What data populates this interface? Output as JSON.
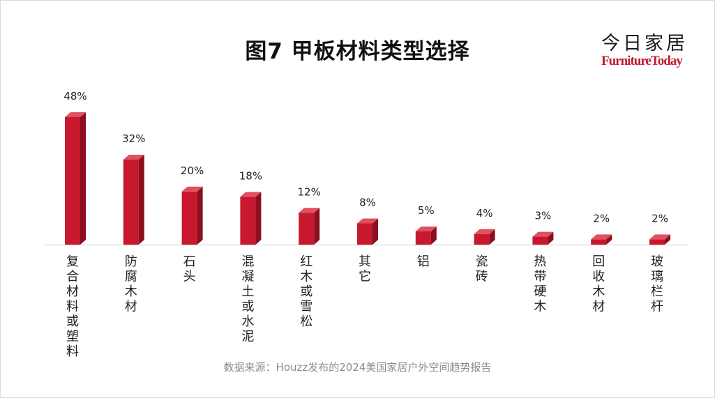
{
  "brand": {
    "cn": "今日家居",
    "en": "FurnitureToday"
  },
  "source": "数据来源：Houzz发布的2024美国家居户外空间趋势报告",
  "colors": {
    "bar_front": "#c8182e",
    "bar_side": "#8a0f1f",
    "bar_top": "#e0505f",
    "brand_red": "#c0182e"
  },
  "chart_data": {
    "type": "bar",
    "title": "图7  甲板材料类型选择",
    "categories": [
      "复合材料或塑料",
      "防腐木材",
      "石头",
      "混凝土或水泥",
      "红木或雪松",
      "其它",
      "铝",
      "瓷砖",
      "热带硬木",
      "回收木材",
      "玻璃栏杆"
    ],
    "values": [
      48,
      32,
      20,
      18,
      12,
      8,
      5,
      4,
      3,
      2,
      2
    ],
    "data_labels": [
      "48%",
      "32%",
      "20%",
      "18%",
      "12%",
      "8%",
      "5%",
      "4%",
      "3%",
      "2%",
      "2%"
    ],
    "unit": "%",
    "ylim": [
      0,
      50
    ],
    "grid": false,
    "legend": "none"
  }
}
